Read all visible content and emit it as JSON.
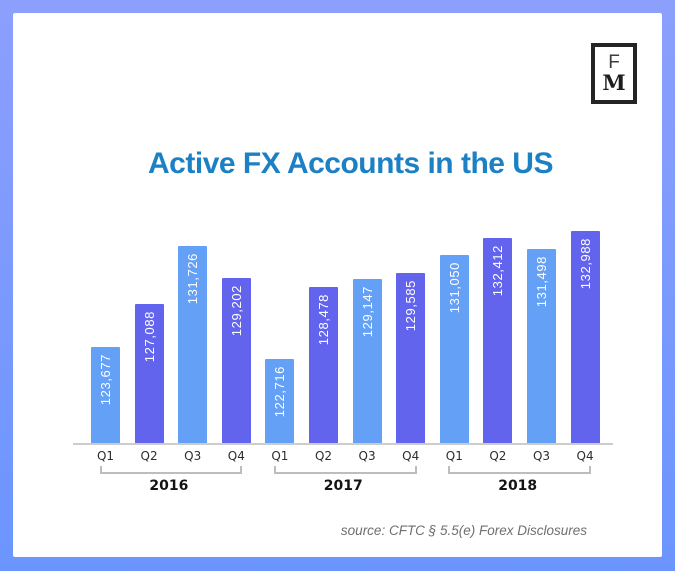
{
  "page": {
    "border_gradient_top": "#8c9ffd",
    "border_gradient_bottom": "#6b95fe",
    "card_bg": "#ffffff"
  },
  "logo": {
    "letter_top": "F",
    "letter_bottom": "M"
  },
  "title": {
    "text": "Active FX Accounts in the US",
    "color": "#1c80c5"
  },
  "source": {
    "text": "source: CFTC § 5.5(e) Forex Disclosures"
  },
  "chart_data": {
    "type": "bar",
    "title": "Active FX Accounts in the US",
    "xlabel": "",
    "ylabel": "",
    "ylim": [
      116000,
      134400
    ],
    "grid": false,
    "legend": false,
    "value_labels": "inside-top, rotated 90deg, white, thousands separator",
    "bar_colors_alternating": [
      "#64a0f6",
      "#6364ee"
    ],
    "groups": [
      {
        "year": "2016",
        "quarters": [
          "Q1",
          "Q2",
          "Q3",
          "Q4"
        ],
        "values": [
          123677,
          127088,
          131726,
          129202
        ]
      },
      {
        "year": "2017",
        "quarters": [
          "Q1",
          "Q2",
          "Q3",
          "Q4"
        ],
        "values": [
          122716,
          128478,
          129147,
          129585
        ]
      },
      {
        "year": "2018",
        "quarters": [
          "Q1",
          "Q2",
          "Q3",
          "Q4"
        ],
        "values": [
          131050,
          132412,
          131498,
          132988
        ]
      }
    ]
  }
}
